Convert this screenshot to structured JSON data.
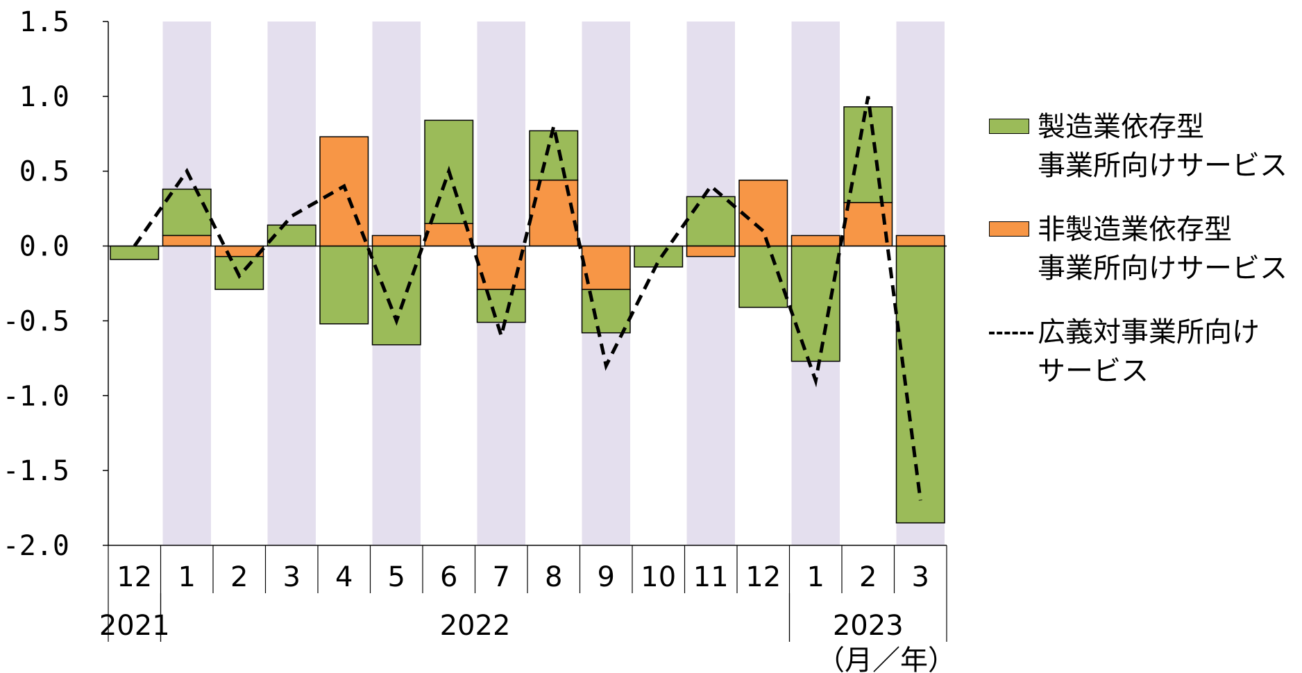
{
  "chart_data": {
    "type": "bar",
    "stacked": true,
    "categories": [
      "12",
      "1",
      "2",
      "3",
      "4",
      "5",
      "6",
      "7",
      "8",
      "9",
      "10",
      "11",
      "12",
      "1",
      "2",
      "3"
    ],
    "year_groups": [
      {
        "label": "2021",
        "start": 0,
        "end": 0
      },
      {
        "label": "2022",
        "start": 1,
        "end": 12
      },
      {
        "label": "2023",
        "start": 13,
        "end": 15
      }
    ],
    "x_unit_label": "（月／年）",
    "ylim": [
      -2.0,
      1.5
    ],
    "yticks": [
      "1.5",
      "1.0",
      "0.5",
      "0.0",
      "-0.5",
      "-1.0",
      "-1.5",
      "-2.0"
    ],
    "ytick_values": [
      1.5,
      1.0,
      0.5,
      0.0,
      -0.5,
      -1.0,
      -1.5,
      -2.0
    ],
    "shaded_months": [
      1,
      3,
      5,
      7,
      9,
      11,
      13,
      15
    ],
    "series": [
      {
        "name_line1": "製造業依存型",
        "name_line2": "事業所向けサービス",
        "kind": "bar",
        "color": "#9bbb59",
        "values": [
          -0.09,
          0.31,
          -0.22,
          0.14,
          -0.52,
          -0.66,
          0.69,
          -0.22,
          0.33,
          -0.29,
          -0.14,
          0.33,
          -0.41,
          -0.77,
          0.64,
          -1.85
        ]
      },
      {
        "name_line1": "非製造業依存型",
        "name_line2": "事業所向けサービス",
        "kind": "bar",
        "color": "#f79646",
        "values": [
          0.0,
          0.07,
          -0.07,
          0.0,
          0.73,
          0.07,
          0.15,
          -0.29,
          0.44,
          -0.29,
          0.0,
          -0.07,
          0.44,
          0.07,
          0.29,
          0.07
        ]
      },
      {
        "name_line1": "広義対事業所向け",
        "name_line2": "サービス",
        "kind": "line",
        "style": "dashed",
        "color": "#000000",
        "values": [
          0.0,
          0.5,
          -0.2,
          0.2,
          0.4,
          -0.5,
          0.5,
          -0.6,
          0.8,
          -0.8,
          -0.1,
          0.4,
          0.1,
          -0.9,
          1.0,
          -1.7
        ]
      }
    ],
    "grid": false,
    "legend_position": "right"
  }
}
